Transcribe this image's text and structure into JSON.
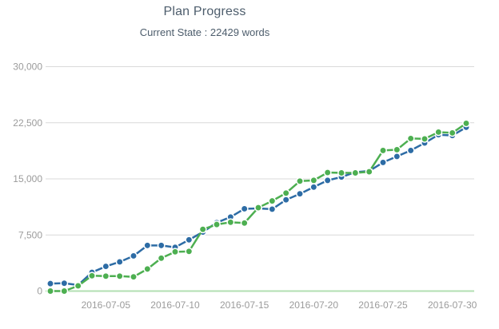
{
  "page": {
    "background": "#ffffff"
  },
  "header": {
    "title": "Plan Progress",
    "subtitle": "Current State : 22429 words"
  },
  "chart_data": {
    "type": "line",
    "title": "Plan Progress",
    "subtitle": "Current State : 22429 words",
    "current_state_words": 22429,
    "x": [
      "2016-07-01",
      "2016-07-02",
      "2016-07-03",
      "2016-07-04",
      "2016-07-05",
      "2016-07-06",
      "2016-07-07",
      "2016-07-08",
      "2016-07-09",
      "2016-07-10",
      "2016-07-11",
      "2016-07-12",
      "2016-07-13",
      "2016-07-14",
      "2016-07-15",
      "2016-07-16",
      "2016-07-17",
      "2016-07-18",
      "2016-07-19",
      "2016-07-20",
      "2016-07-21",
      "2016-07-22",
      "2016-07-23",
      "2016-07-24",
      "2016-07-25",
      "2016-07-26",
      "2016-07-27",
      "2016-07-28",
      "2016-07-29",
      "2016-07-30",
      "2016-07-31"
    ],
    "x_tick_labels": [
      "2016-07-05",
      "2016-07-10",
      "2016-07-15",
      "2016-07-20",
      "2016-07-25",
      "2016-07-30"
    ],
    "y_ticks": [
      0,
      7500,
      15000,
      22500,
      30000
    ],
    "y_tick_labels": [
      "0",
      "7,500",
      "15,000",
      "22,500",
      "30,000"
    ],
    "ylim": [
      0,
      30000
    ],
    "grid": "horizontal",
    "legend": "none",
    "series": [
      {
        "name": "blue",
        "color": "#2d6ca5",
        "values": [
          1000,
          1050,
          800,
          2500,
          3300,
          3900,
          4700,
          6100,
          6100,
          5850,
          6850,
          7900,
          9150,
          9900,
          11000,
          11050,
          10950,
          12200,
          13000,
          13900,
          14800,
          15250,
          15900,
          16050,
          17200,
          18000,
          18800,
          19800,
          20900,
          20800,
          21900
        ]
      },
      {
        "name": "green",
        "color": "#4daf51",
        "values": [
          0,
          0,
          700,
          2050,
          2000,
          2000,
          1900,
          2950,
          4400,
          5250,
          5300,
          8250,
          8900,
          9200,
          9100,
          11150,
          12050,
          13100,
          14700,
          14800,
          15850,
          15800,
          15800,
          15950,
          18800,
          18900,
          20400,
          20350,
          21250,
          21150,
          22429
        ]
      }
    ],
    "axis_line_color": "#b2dfb2",
    "grid_color": "#d9d9d9",
    "tick_label_color": "#9b9b9b"
  }
}
